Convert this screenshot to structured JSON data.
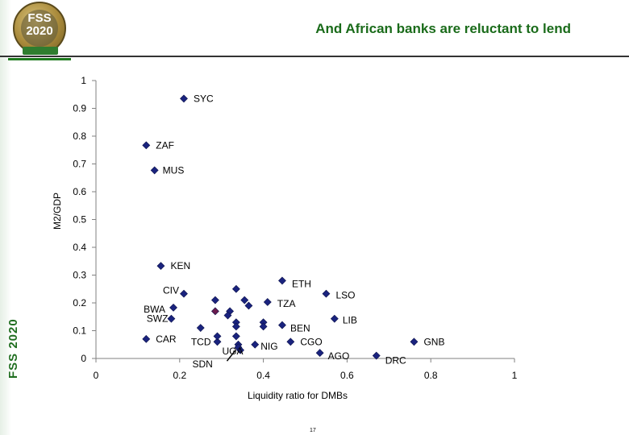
{
  "header": {
    "title": "And African banks are reluctant to lend",
    "logo_line1": "FSS",
    "logo_line2": "2020",
    "side_label": "FSS 2020"
  },
  "footer": {
    "page_number": "17"
  },
  "colors": {
    "marker": "#1a237e",
    "marker_alt": "#6a1b4d",
    "title": "#1a6b1a",
    "axis": "#808080"
  },
  "chart_data": {
    "type": "scatter",
    "title": "",
    "xlabel": "Liquidity ratio for DMBs",
    "ylabel": "M2/GDP",
    "xlim": [
      0,
      1
    ],
    "ylim": [
      0,
      1
    ],
    "xticks": [
      0,
      0.2,
      0.4,
      0.6,
      0.8,
      1
    ],
    "xtick_labels": [
      "0",
      "0.2",
      "0.4",
      "0.6",
      "0.8",
      "1"
    ],
    "yticks": [
      0,
      0.1,
      0.2,
      0.3,
      0.4,
      0.5,
      0.6,
      0.7,
      0.8,
      0.9,
      1
    ],
    "ytick_labels": [
      "0",
      "0.1",
      "0.2",
      "0.3",
      "0.4",
      "0.5",
      "0.6",
      "0.7",
      "0.8",
      "0.9",
      "1"
    ],
    "grid": false,
    "legend": "none",
    "points": [
      {
        "label": "SYC",
        "x": 0.21,
        "y": 0.935
      },
      {
        "label": "ZAF",
        "x": 0.12,
        "y": 0.767
      },
      {
        "label": "MUS",
        "x": 0.14,
        "y": 0.677
      },
      {
        "label": "KEN",
        "x": 0.155,
        "y": 0.333
      },
      {
        "label": "ETH",
        "x": 0.445,
        "y": 0.28
      },
      {
        "label": "CIV",
        "x": 0.21,
        "y": 0.233
      },
      {
        "label": "BWA",
        "x": 0.185,
        "y": 0.183
      },
      {
        "label": "SWZ",
        "x": 0.18,
        "y": 0.143
      },
      {
        "label": "LSO",
        "x": 0.55,
        "y": 0.233
      },
      {
        "label": "TZA",
        "x": 0.41,
        "y": 0.203
      },
      {
        "label": "LIB",
        "x": 0.57,
        "y": 0.143
      },
      {
        "label": "BEN",
        "x": 0.445,
        "y": 0.12
      },
      {
        "label": "CAR",
        "x": 0.12,
        "y": 0.07
      },
      {
        "label": "TCD",
        "x": 0.29,
        "y": 0.06
      },
      {
        "label": "UGA",
        "x": 0.34,
        "y": 0.05
      },
      {
        "label": "NIG",
        "x": 0.38,
        "y": 0.05
      },
      {
        "label": "CGO",
        "x": 0.465,
        "y": 0.06
      },
      {
        "label": "AGO",
        "x": 0.535,
        "y": 0.02
      },
      {
        "label": "DRC",
        "x": 0.67,
        "y": 0.01
      },
      {
        "label": "GNB",
        "x": 0.76,
        "y": 0.06
      },
      {
        "label": "SDN",
        "x": 0.34,
        "y": 0.04
      },
      {
        "label": "",
        "x": 0.285,
        "y": 0.21
      },
      {
        "label": "",
        "x": 0.285,
        "y": 0.17
      },
      {
        "label": "",
        "x": 0.335,
        "y": 0.25
      },
      {
        "label": "",
        "x": 0.355,
        "y": 0.21
      },
      {
        "label": "",
        "x": 0.365,
        "y": 0.19
      },
      {
        "label": "",
        "x": 0.32,
        "y": 0.17
      },
      {
        "label": "",
        "x": 0.315,
        "y": 0.155
      },
      {
        "label": "",
        "x": 0.335,
        "y": 0.13
      },
      {
        "label": "",
        "x": 0.335,
        "y": 0.115
      },
      {
        "label": "",
        "x": 0.4,
        "y": 0.13
      },
      {
        "label": "",
        "x": 0.4,
        "y": 0.115
      },
      {
        "label": "",
        "x": 0.25,
        "y": 0.11
      },
      {
        "label": "",
        "x": 0.29,
        "y": 0.08
      },
      {
        "label": "",
        "x": 0.335,
        "y": 0.08
      },
      {
        "label": "",
        "x": 0.345,
        "y": 0.03
      }
    ]
  }
}
